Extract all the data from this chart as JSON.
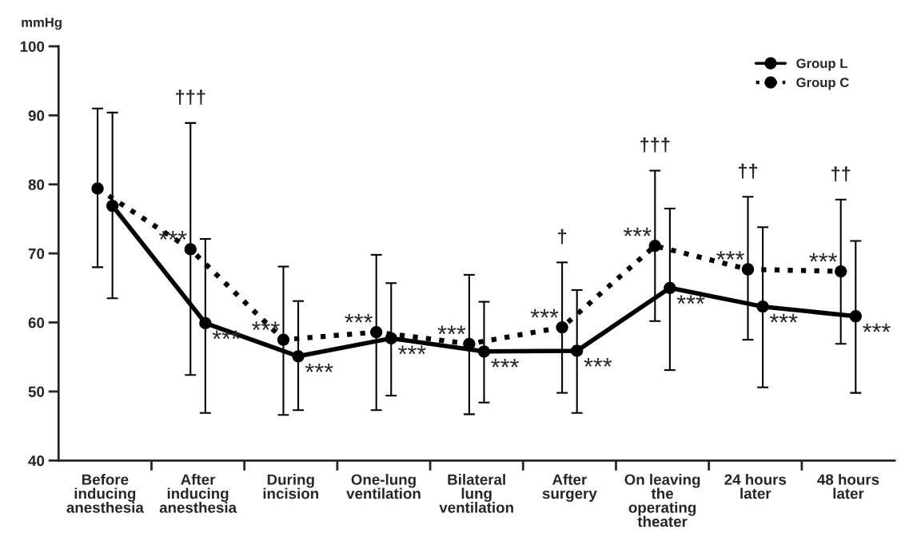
{
  "chart_data": {
    "type": "line",
    "ylabel": "mmHg",
    "categories": [
      "Before\ninducing\nanesthesia",
      "After\ninducing\nanesthesia",
      "During\nincision",
      "One-lung\nventilation",
      "Bilateral\nlung\nventilation",
      "After\nsurgery",
      "On leaving\nthe\noperating\ntheater",
      "24 hours\nlater",
      "48 hours\nlater"
    ],
    "series": [
      {
        "name": "Group L",
        "color": "#000000",
        "line_style": "solid",
        "values": [
          76.9,
          59.9,
          55.1,
          57.7,
          55.8,
          55.9,
          65.0,
          62.3,
          60.9
        ],
        "errors": [
          [
            63.5,
            90.4
          ],
          [
            46.9,
            72.1
          ],
          [
            47.3,
            63.1
          ],
          [
            49.4,
            65.7
          ],
          [
            48.4,
            63.0
          ],
          [
            46.9,
            64.7
          ],
          [
            53.1,
            76.5
          ],
          [
            50.6,
            73.8
          ],
          [
            49.8,
            71.8
          ]
        ]
      },
      {
        "name": "Group C",
        "color": "#000000",
        "line_style": "dotted",
        "values": [
          79.4,
          70.6,
          57.5,
          58.6,
          56.9,
          59.3,
          71.1,
          67.7,
          67.4
        ],
        "errors": [
          [
            68.0,
            91.0
          ],
          [
            52.4,
            88.9
          ],
          [
            46.6,
            68.1
          ],
          [
            47.3,
            69.8
          ],
          [
            46.7,
            66.9
          ],
          [
            49.8,
            68.7
          ],
          [
            60.2,
            82.0
          ],
          [
            57.5,
            78.2
          ],
          [
            56.9,
            77.8
          ]
        ]
      }
    ],
    "ylim": [
      40,
      100
    ],
    "yticks": [
      40,
      50,
      60,
      70,
      80,
      90,
      100
    ],
    "grid": false,
    "legend": "top right",
    "marker": "circle",
    "annotations": [
      {
        "text": "***",
        "x": "After\ninducing\nanesthesia",
        "y": 70.6
      },
      {
        "text": "***",
        "x": "After\ninducing\nanesthesia",
        "y": 59.9
      },
      {
        "text": "***",
        "x": "During\nincision",
        "y": 57.5
      },
      {
        "text": "***",
        "x": "During\nincision",
        "y": 55.1
      },
      {
        "text": "***",
        "x": "One-lung\nventilation",
        "y": 58.6
      },
      {
        "text": "***",
        "x": "One-lung\nventilation",
        "y": 57.7
      },
      {
        "text": "***",
        "x": "Bilateral\nlung\nventilation",
        "y": 56.9
      },
      {
        "text": "***",
        "x": "Bilateral\nlung\nventilation",
        "y": 55.8
      },
      {
        "text": "***",
        "x": "After\nsurgery",
        "y": 59.3
      },
      {
        "text": "***",
        "x": "After\nsurgery",
        "y": 55.9
      },
      {
        "text": "***",
        "x": "On leaving\nthe\noperating\ntheater",
        "y": 71.1
      },
      {
        "text": "***",
        "x": "On leaving\nthe\noperating\ntheater",
        "y": 65.0
      },
      {
        "text": "***",
        "x": "24 hours\nlater",
        "y": 67.7
      },
      {
        "text": "***",
        "x": "24 hours\nlater",
        "y": 62.3
      },
      {
        "text": "***",
        "x": "48 hours\nlater",
        "y": 67.4
      },
      {
        "text": "***",
        "x": "48 hours\nlater",
        "y": 60.9
      },
      {
        "text": "†††",
        "x": "After\ninducing\nanesthesia",
        "y": 88.9
      },
      {
        "text": "†",
        "x": "After\nsurgery",
        "y": 68.7
      },
      {
        "text": "†††",
        "x": "On leaving\nthe\noperating\ntheater",
        "y": 82.0
      },
      {
        "text": "††",
        "x": "24 hours\nlater",
        "y": 78.2
      },
      {
        "text": "††",
        "x": "48 hours\nlater",
        "y": 77.8
      }
    ]
  }
}
